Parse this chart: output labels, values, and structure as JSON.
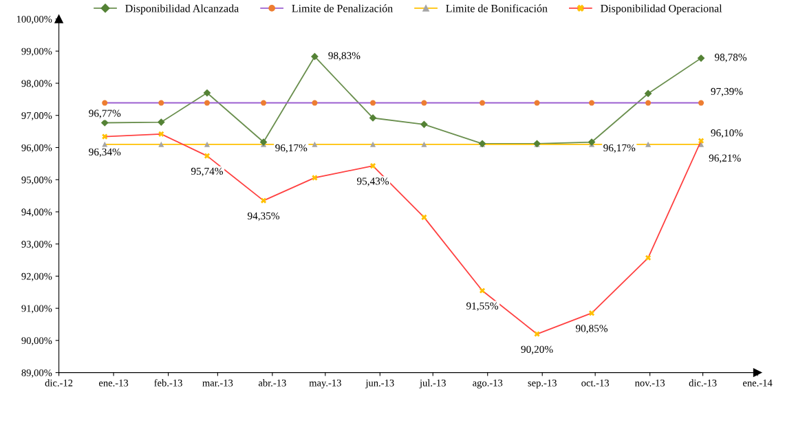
{
  "chart_data": {
    "type": "line",
    "x": [
      "2012-12-27",
      "2013-01-28",
      "2013-02-23",
      "2013-03-27",
      "2013-04-25",
      "2013-05-28",
      "2013-06-26",
      "2013-07-29",
      "2013-08-29",
      "2013-09-29",
      "2013-10-31",
      "2013-11-30"
    ],
    "series": [
      {
        "name": "Disponibilidad Alcanzada",
        "color": "#6a8f4e",
        "marker": "diamond",
        "colors": [
          "#548235",
          "#548235",
          "#548235",
          "#548235",
          "#548235",
          "#548235",
          "#548235",
          "#548235",
          "#548235",
          "#548235",
          "#548235",
          "#548235"
        ],
        "values": [
          96.77,
          96.79,
          97.7,
          96.17,
          98.83,
          96.92,
          96.72,
          96.12,
          96.12,
          96.17,
          97.68,
          98.78
        ],
        "value_labels": [
          "96,77%",
          null,
          null,
          "96,17%",
          "98,83%",
          null,
          null,
          null,
          null,
          "96,17%",
          null,
          "98,78%"
        ]
      },
      {
        "name": "Limite de Penalización",
        "color": "#9b5fd0",
        "marker": "circle",
        "colors": [
          "#ed7d31",
          "#ed7d31",
          "#ed7d31",
          "#ed7d31",
          "#ed7d31",
          "#ed7d31",
          "#ed7d31",
          "#ed7d31",
          "#ed7d31",
          "#ed7d31",
          "#ed7d31",
          "#ed7d31"
        ],
        "values": [
          97.39,
          97.39,
          97.39,
          97.39,
          97.39,
          97.39,
          97.39,
          97.39,
          97.39,
          97.39,
          97.39,
          97.39
        ],
        "value_labels": [
          null,
          null,
          null,
          null,
          null,
          null,
          null,
          null,
          null,
          null,
          null,
          "97,39%"
        ]
      },
      {
        "name": "Limite de Bonificación",
        "color": "#ffc000",
        "marker": "triangle",
        "colors": [
          "#a5a5a5",
          "#a5a5a5",
          "#a5a5a5",
          "#a5a5a5",
          "#a5a5a5",
          "#a5a5a5",
          "#a5a5a5",
          "#a5a5a5",
          "#a5a5a5",
          "#a5a5a5",
          "#a5a5a5",
          "#a5a5a5"
        ],
        "values": [
          96.1,
          96.1,
          96.1,
          96.1,
          96.1,
          96.1,
          96.1,
          96.1,
          96.1,
          96.1,
          96.1,
          96.1
        ],
        "value_labels": [
          null,
          null,
          null,
          null,
          null,
          null,
          null,
          null,
          null,
          null,
          null,
          "96,10%"
        ]
      },
      {
        "name": "Disponibilidad Operacional",
        "color": "#ff4040",
        "marker": "cross",
        "colors": [
          "#ffc000",
          "#ffc000",
          "#ffc000",
          "#ffc000",
          "#ffc000",
          "#ffc000",
          "#ffc000",
          "#ffc000",
          "#ffc000",
          "#ffc000",
          "#ffc000",
          "#ffc000"
        ],
        "values": [
          96.34,
          96.42,
          95.74,
          94.35,
          95.06,
          95.43,
          93.83,
          91.55,
          90.2,
          90.85,
          92.57,
          96.21
        ],
        "value_labels": [
          "96,34%",
          null,
          "95,74%",
          "94,35%",
          null,
          "95,43%",
          null,
          "91,55%",
          "90,20%",
          "90,85%",
          null,
          "96,21%"
        ]
      }
    ],
    "xlim": [
      "2012-12-01",
      "2014-01-01"
    ],
    "xticks": [
      {
        "value": "2012-12-01",
        "label": "dic.-12"
      },
      {
        "value": "2013-01-01",
        "label": "ene.-13"
      },
      {
        "value": "2013-02-01",
        "label": "feb.-13"
      },
      {
        "value": "2013-03-01",
        "label": "mar.-13"
      },
      {
        "value": "2013-04-01",
        "label": "abr.-13"
      },
      {
        "value": "2013-05-01",
        "label": "may.-13"
      },
      {
        "value": "2013-06-01",
        "label": "jun.-13"
      },
      {
        "value": "2013-07-01",
        "label": "jul.-13"
      },
      {
        "value": "2013-08-01",
        "label": "ago.-13"
      },
      {
        "value": "2013-09-01",
        "label": "sep.-13"
      },
      {
        "value": "2013-10-01",
        "label": "oct.-13"
      },
      {
        "value": "2013-11-01",
        "label": "nov.-13"
      },
      {
        "value": "2013-12-01",
        "label": "dic.-13"
      },
      {
        "value": "2014-01-01",
        "label": "ene.-14"
      }
    ],
    "ylim": [
      89,
      100
    ],
    "yticks": [
      {
        "value": 89,
        "label": "89,00%"
      },
      {
        "value": 90,
        "label": "90,00%"
      },
      {
        "value": 91,
        "label": "91,00%"
      },
      {
        "value": 92,
        "label": "92,00%"
      },
      {
        "value": 93,
        "label": "93,00%"
      },
      {
        "value": 94,
        "label": "94,00%"
      },
      {
        "value": 95,
        "label": "95,00%"
      },
      {
        "value": 96,
        "label": "96,00%"
      },
      {
        "value": 97,
        "label": "97,00%"
      },
      {
        "value": 98,
        "label": "98,00%"
      },
      {
        "value": 99,
        "label": "99,00%"
      },
      {
        "value": 100,
        "label": "100,00%"
      }
    ],
    "grid": false,
    "legend": "top"
  }
}
